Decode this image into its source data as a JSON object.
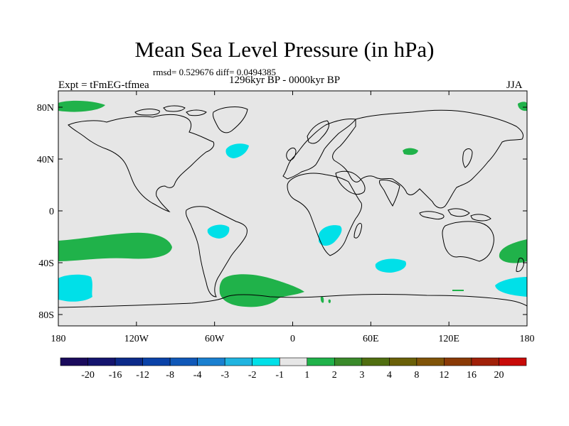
{
  "title": "Mean Sea Level Pressure (in hPa)",
  "stats": "rmsd= 0.529676 diff= 0.0494385",
  "period": "1296kyr BP - 0000kyr BP",
  "experiment": "Expt = tFmEG-tfmea",
  "season": "JJA",
  "y_axis": {
    "ticks": [
      {
        "label": "80N",
        "lat": 80
      },
      {
        "label": "40N",
        "lat": 40
      },
      {
        "label": "0",
        "lat": 0
      },
      {
        "label": "40S",
        "lat": -40
      },
      {
        "label": "80S",
        "lat": -80
      }
    ]
  },
  "x_axis": {
    "ticks": [
      {
        "label": "180",
        "lon": -180
      },
      {
        "label": "120W",
        "lon": -120
      },
      {
        "label": "60W",
        "lon": -60
      },
      {
        "label": "0",
        "lon": 0
      },
      {
        "label": "60E",
        "lon": 60
      },
      {
        "label": "120E",
        "lon": 120
      },
      {
        "label": "180",
        "lon": 180
      }
    ]
  },
  "colorbar": {
    "colors": [
      "#1a0a5c",
      "#14146e",
      "#0c2a8a",
      "#0a42a8",
      "#1058b8",
      "#1a80d0",
      "#20b4e0",
      "#00e0e8",
      "#e6e6e6",
      "#20b24a",
      "#3a8a2a",
      "#506e10",
      "#6a6008",
      "#805408",
      "#8a3a06",
      "#a02008",
      "#c80a08"
    ],
    "labels": [
      "-20",
      "-16",
      "-12",
      "-8",
      "-4",
      "-3",
      "-2",
      "-1",
      "1",
      "2",
      "3",
      "4",
      "8",
      "12",
      "16",
      "20"
    ]
  },
  "colors": {
    "background": "#e6e6e6",
    "positive": "#20b24a",
    "negative": "#00e0e8"
  }
}
